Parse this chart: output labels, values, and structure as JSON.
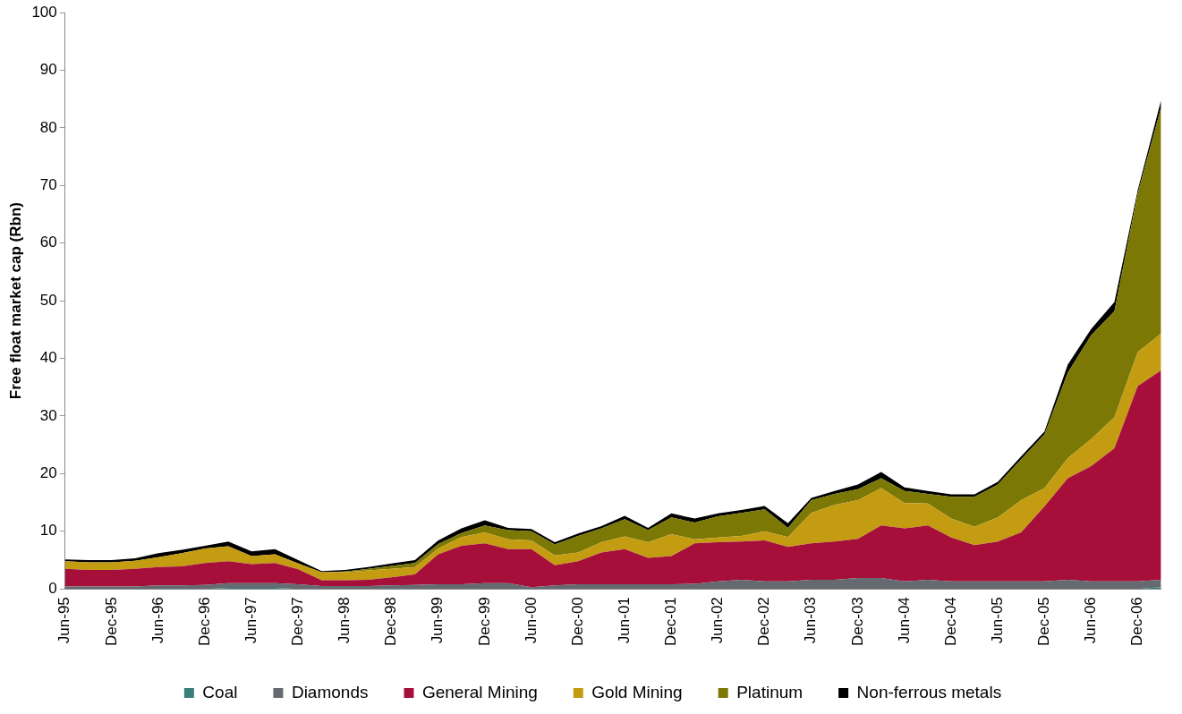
{
  "chart_data": {
    "type": "area",
    "stacked": true,
    "legend": "bottom",
    "ylabel": "Free float market cap (Rbn)",
    "categories": [
      "Jun-95",
      null,
      "Dec-95",
      null,
      "Jun-96",
      null,
      "Dec-96",
      null,
      "Jun-97",
      null,
      "Dec-97",
      null,
      "Jun-98",
      null,
      "Dec-98",
      null,
      "Jun-99",
      null,
      "Dec-99",
      null,
      "Jun-00",
      null,
      "Dec-00",
      null,
      "Jun-01",
      null,
      "Dec-01",
      null,
      "Jun-02",
      null,
      "Dec-02",
      null,
      "Jun-03",
      null,
      "Dec-03",
      null,
      "Jun-04",
      null,
      "Dec-04",
      null,
      "Jun-05",
      null,
      "Dec-05",
      null,
      "Jun-06",
      null,
      "Dec-06",
      null
    ],
    "ylim": [
      0,
      100
    ],
    "yticks": [
      0,
      10,
      20,
      30,
      40,
      50,
      60,
      70,
      80,
      90,
      100
    ],
    "series": [
      {
        "name": "Coal",
        "color": "#3a7f7a",
        "values": [
          0,
          0,
          0,
          0,
          0,
          0,
          0,
          0.2,
          0.2,
          0.2,
          0,
          0,
          0,
          0,
          0,
          0,
          0,
          0,
          0,
          0,
          0,
          0,
          0,
          0,
          0,
          0,
          0,
          0,
          0,
          0,
          0,
          0,
          0,
          0,
          0,
          0,
          0,
          0,
          0,
          0,
          0,
          0,
          0,
          0,
          0,
          0,
          0,
          0.3
        ]
      },
      {
        "name": "Diamonds",
        "color": "#646a70",
        "values": [
          0.4,
          0.4,
          0.4,
          0.4,
          0.6,
          0.6,
          0.7,
          0.8,
          0.8,
          0.8,
          0.8,
          0.5,
          0.5,
          0.5,
          0.6,
          0.7,
          0.8,
          0.8,
          1.0,
          1.0,
          0.3,
          0.6,
          0.8,
          0.8,
          0.8,
          0.8,
          0.8,
          0.9,
          1.3,
          1.6,
          1.3,
          1.3,
          1.6,
          1.6,
          1.9,
          1.9,
          1.3,
          1.6,
          1.3,
          1.3,
          1.3,
          1.3,
          1.3,
          1.6,
          1.3,
          1.3,
          1.3,
          1.3
        ]
      },
      {
        "name": "General Mining",
        "color": "#a50f3a",
        "values": [
          3.1,
          2.9,
          2.9,
          3.1,
          3.2,
          3.3,
          3.8,
          3.8,
          3.3,
          3.5,
          2.6,
          1.0,
          1.0,
          1.1,
          1.4,
          1.8,
          5.2,
          6.7,
          6.9,
          5.9,
          6.6,
          3.5,
          4.0,
          5.5,
          6.1,
          4.6,
          4.9,
          7.0,
          6.8,
          6.6,
          7.1,
          6.0,
          6.3,
          6.6,
          6.8,
          9.1,
          9.2,
          9.4,
          7.6,
          6.3,
          6.9,
          8.5,
          13.0,
          17.6,
          20.0,
          23.1,
          33.9,
          36.3
        ]
      },
      {
        "name": "Gold Mining",
        "color": "#c49c12",
        "values": [
          1.3,
          1.3,
          1.3,
          1.4,
          1.7,
          2.3,
          2.5,
          2.6,
          1.4,
          1.5,
          1.0,
          1.4,
          1.4,
          1.6,
          1.5,
          1.3,
          1.0,
          1.5,
          1.9,
          1.7,
          1.5,
          1.7,
          1.5,
          1.8,
          2.2,
          2.7,
          3.8,
          0.7,
          0.8,
          1.0,
          1.6,
          1.7,
          5.3,
          6.4,
          6.7,
          6.5,
          4.4,
          3.8,
          3.3,
          3.2,
          4.2,
          5.6,
          3.2,
          3.5,
          4.7,
          5.4,
          5.9,
          6.4
        ]
      },
      {
        "name": "Platinum",
        "color": "#7b7806",
        "values": [
          0,
          0,
          0,
          0,
          0,
          0,
          0,
          0,
          0,
          0,
          0,
          0,
          0.1,
          0.3,
          0.5,
          0.7,
          0.8,
          0.7,
          1.2,
          1.6,
          1.6,
          1.9,
          2.9,
          2.4,
          3.0,
          2.1,
          2.9,
          2.9,
          3.7,
          4.0,
          3.8,
          1.6,
          2.2,
          1.9,
          1.9,
          1.7,
          2.1,
          1.7,
          3.8,
          5.2,
          5.7,
          7.1,
          9.3,
          14.8,
          18.0,
          18.4,
          27.5,
          39.2
        ]
      },
      {
        "name": "Non-ferrous metals",
        "color": "#000000",
        "values": [
          0.3,
          0.4,
          0.4,
          0.4,
          0.7,
          0.6,
          0.5,
          0.8,
          0.8,
          0.9,
          0.6,
          0.2,
          0.3,
          0.3,
          0.4,
          0.5,
          0.6,
          0.8,
          0.9,
          0.4,
          0.4,
          0.4,
          0.4,
          0.4,
          0.6,
          0.4,
          0.7,
          0.7,
          0.5,
          0.5,
          0.6,
          0.8,
          0.4,
          0.5,
          0.8,
          1.1,
          0.6,
          0.5,
          0.4,
          0.4,
          0.5,
          0.5,
          0.5,
          1.4,
          1.1,
          1.6,
          0.6,
          1.3
        ]
      }
    ]
  }
}
